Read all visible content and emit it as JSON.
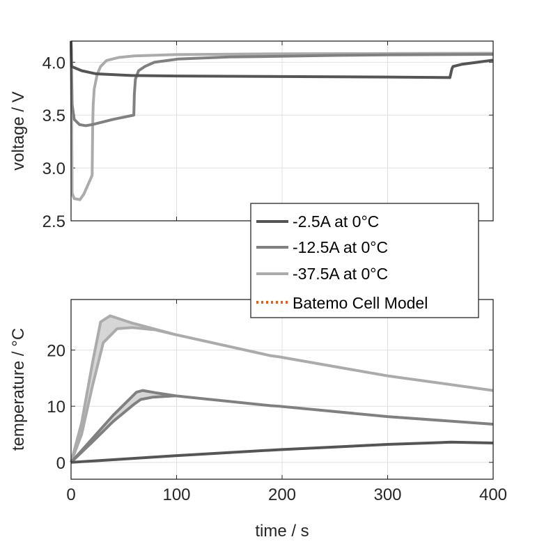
{
  "chart_data": [
    {
      "type": "line",
      "title": "",
      "xlabel": "",
      "ylabel": "voltage / V",
      "xlim": [
        0,
        400
      ],
      "ylim": [
        2.5,
        4.2
      ],
      "yticks": [
        2.5,
        3.0,
        3.5,
        4.0
      ],
      "ytick_labels": [
        "2.5",
        "3.0",
        "3.5",
        "4.0"
      ],
      "xticks": [
        0,
        100,
        200,
        300,
        400
      ],
      "grid": true,
      "series": [
        {
          "name": "-2.5A at 0°C",
          "color": "#555555",
          "x": [
            0,
            0.5,
            10,
            24,
            57,
            100,
            200,
            300,
            359,
            361,
            362,
            370,
            385,
            400
          ],
          "y": [
            4.2,
            3.96,
            3.92,
            3.89,
            3.875,
            3.87,
            3.865,
            3.86,
            3.855,
            3.94,
            3.96,
            3.98,
            4.0,
            4.02
          ]
        },
        {
          "name": "-12.5A at 0°C",
          "color": "#808080",
          "x": [
            0,
            1,
            3,
            8,
            14,
            20,
            40,
            59.5,
            60,
            61,
            64,
            70,
            79,
            101,
            150,
            189,
            250,
            300,
            400
          ],
          "y": [
            4.2,
            3.6,
            3.46,
            3.41,
            3.4,
            3.41,
            3.46,
            3.5,
            3.7,
            3.84,
            3.92,
            3.96,
            4.0,
            4.03,
            4.05,
            4.055,
            4.065,
            4.07,
            4.075
          ]
        },
        {
          "name": "-37.5A at 0°C",
          "color": "#ababab",
          "x": [
            0,
            0.5,
            1,
            3,
            8.4,
            12,
            20,
            20.5,
            21,
            22,
            24.8,
            28,
            33.7,
            45,
            60,
            99,
            200,
            400
          ],
          "y": [
            4.2,
            3.6,
            2.76,
            2.71,
            2.7,
            2.75,
            2.93,
            3.4,
            3.6,
            3.75,
            3.886,
            3.96,
            4.017,
            4.045,
            4.06,
            4.072,
            4.08,
            4.085
          ]
        }
      ]
    },
    {
      "type": "line",
      "title": "",
      "xlabel": "time / s",
      "ylabel": "temperature / °C",
      "xlim": [
        0,
        400
      ],
      "ylim": [
        -3,
        29
      ],
      "yticks": [
        0,
        10,
        20
      ],
      "ytick_labels": [
        "0",
        "10",
        "20"
      ],
      "xticks": [
        0,
        100,
        200,
        300,
        400
      ],
      "xtick_labels": [
        "0",
        "100",
        "200",
        "300",
        "400"
      ],
      "grid": true,
      "series": [
        {
          "name": "-2.5A at 0°C",
          "color": "#555555",
          "x": [
            0,
            50,
            100,
            197,
            300,
            360,
            400
          ],
          "y": [
            0,
            0.6,
            1.2,
            2.26,
            3.2,
            3.6,
            3.45
          ]
        },
        {
          "name": "-12.5A at 0°C",
          "color": "#808080",
          "x": [
            0,
            20,
            40,
            62,
            68,
            80,
            99,
            189,
            197,
            300,
            400
          ],
          "y": [
            0,
            4.2,
            8.4,
            12.5,
            12.8,
            12.4,
            11.85,
            10.1,
            10.0,
            8.15,
            6.8
          ],
          "lower": {
            "x": [
              0,
              20,
              40,
              60,
              66,
              77,
              99
            ],
            "y": [
              0,
              3.6,
              7.3,
              10.4,
              11.2,
              11.6,
              11.85
            ]
          }
        },
        {
          "name": "-37.5A at 0°C",
          "color": "#ababab",
          "x": [
            0,
            10,
            20.4,
            28,
            37,
            58,
            99,
            189,
            197,
            300,
            400
          ],
          "y": [
            0,
            7,
            17.8,
            25.0,
            26.1,
            24.8,
            22.75,
            19.0,
            18.8,
            15.4,
            12.8
          ],
          "lower": {
            "x": [
              0,
              10,
              20.4,
              30.5,
              43.6,
              58,
              80,
              99
            ],
            "y": [
              0,
              5,
              13.7,
              21.3,
              23.8,
              24.0,
              23.6,
              22.75
            ]
          }
        }
      ]
    }
  ],
  "legend": {
    "placement": "center-right",
    "entries": [
      {
        "label": "-2.5A at 0°C",
        "color": "#555555",
        "style": "solid"
      },
      {
        "label": "-12.5A at 0°C",
        "color": "#808080",
        "style": "solid"
      },
      {
        "label": "-37.5A at 0°C",
        "color": "#ababab",
        "style": "solid"
      },
      {
        "label": "Batemo Cell Model",
        "color": "#f05a14",
        "style": "dotted"
      }
    ]
  }
}
